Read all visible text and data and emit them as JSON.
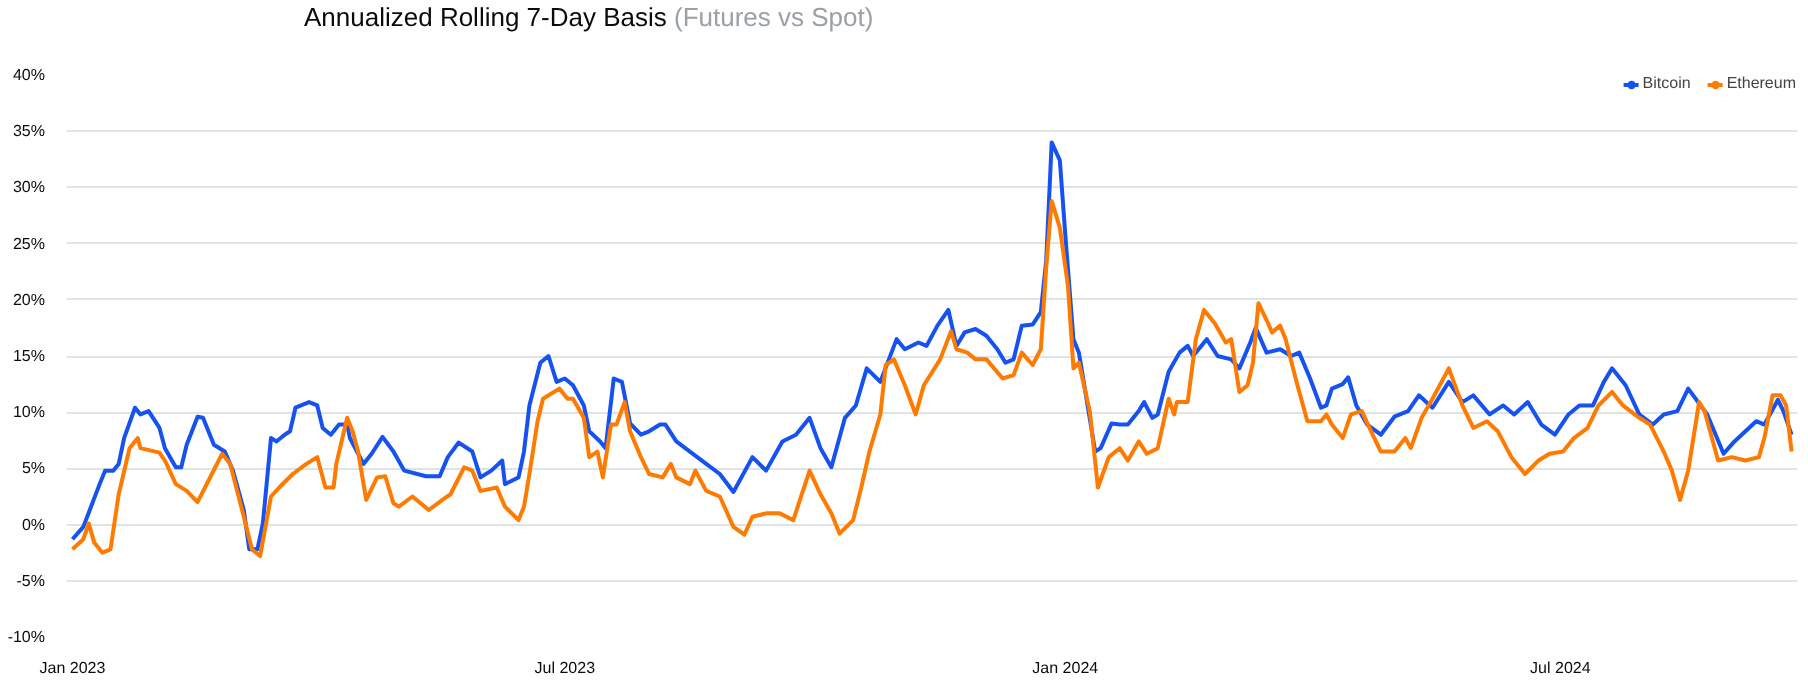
{
  "chart_data": {
    "type": "line",
    "title": "Annualized Rolling 7-Day Basis",
    "subtitle": "(Futures vs Spot)",
    "xlim": [
      "2022-12-30",
      "2024-09-26"
    ],
    "xticks": [
      {
        "value": "2023-01-01",
        "label": "Jan 2023"
      },
      {
        "value": "2023-07-01",
        "label": "Jul 2023"
      },
      {
        "value": "2024-01-01",
        "label": "Jan 2024"
      },
      {
        "value": "2024-07-01",
        "label": "Jul 2024"
      }
    ],
    "ylim": [
      -10,
      40
    ],
    "yticks": [
      {
        "value": -10,
        "label": "-10%"
      },
      {
        "value": -5,
        "label": "-5%"
      },
      {
        "value": 0,
        "label": "0%"
      },
      {
        "value": 5,
        "label": "5%"
      },
      {
        "value": 10,
        "label": "10%"
      },
      {
        "value": 15,
        "label": "15%"
      },
      {
        "value": 20,
        "label": "20%"
      },
      {
        "value": 25,
        "label": "25%"
      },
      {
        "value": 30,
        "label": "30%"
      },
      {
        "value": 35,
        "label": "35%"
      },
      {
        "value": 40,
        "label": "40%"
      }
    ],
    "grid": "y",
    "legend": "top right",
    "marker": "none",
    "line_style": "solid",
    "series": [
      {
        "name": "Bitcoin",
        "color": "#1652f0",
        "x": [
          "2023-01-01",
          "2023-01-05",
          "2023-01-11",
          "2023-01-13",
          "2023-01-16",
          "2023-01-18",
          "2023-01-20",
          "2023-01-24",
          "2023-01-26",
          "2023-01-29",
          "2023-02-02",
          "2023-02-04",
          "2023-02-08",
          "2023-02-10",
          "2023-02-12",
          "2023-02-16",
          "2023-02-18",
          "2023-02-22",
          "2023-02-26",
          "2023-03-01",
          "2023-03-05",
          "2023-03-07",
          "2023-03-10",
          "2023-03-12",
          "2023-03-15",
          "2023-03-17",
          "2023-03-20",
          "2023-03-22",
          "2023-03-24",
          "2023-03-29",
          "2023-04-01",
          "2023-04-03",
          "2023-04-06",
          "2023-04-09",
          "2023-04-12",
          "2023-04-13",
          "2023-04-18",
          "2023-04-21",
          "2023-04-25",
          "2023-04-29",
          "2023-05-03",
          "2023-05-11",
          "2023-05-16",
          "2023-05-19",
          "2023-05-23",
          "2023-05-28",
          "2023-05-31",
          "2023-06-04",
          "2023-06-08",
          "2023-06-09",
          "2023-06-14",
          "2023-06-16",
          "2023-06-18",
          "2023-06-22",
          "2023-06-25",
          "2023-06-28",
          "2023-07-01",
          "2023-07-04",
          "2023-07-08",
          "2023-07-10",
          "2023-07-14",
          "2023-07-16",
          "2023-07-19",
          "2023-07-22",
          "2023-07-25",
          "2023-07-29",
          "2023-08-01",
          "2023-08-05",
          "2023-08-07",
          "2023-08-11",
          "2023-08-16",
          "2023-08-22",
          "2023-08-27",
          "2023-09-01",
          "2023-09-08",
          "2023-09-13",
          "2023-09-19",
          "2023-09-24",
          "2023-09-29",
          "2023-10-03",
          "2023-10-07",
          "2023-10-12",
          "2023-10-16",
          "2023-10-20",
          "2023-10-25",
          "2023-10-31",
          "2023-11-03",
          "2023-11-08",
          "2023-11-11",
          "2023-11-15",
          "2023-11-19",
          "2023-11-22",
          "2023-11-25",
          "2023-11-29",
          "2023-12-03",
          "2023-12-07",
          "2023-12-10",
          "2023-12-13",
          "2023-12-16",
          "2023-12-20",
          "2023-12-23",
          "2023-12-25",
          "2023-12-27",
          "2023-12-30",
          "2024-01-01",
          "2024-01-04",
          "2024-01-06",
          "2024-01-12",
          "2024-01-14",
          "2024-01-18",
          "2024-01-21",
          "2024-01-24",
          "2024-01-28",
          "2024-01-30",
          "2024-02-02",
          "2024-02-04",
          "2024-02-08",
          "2024-02-12",
          "2024-02-15",
          "2024-02-17",
          "2024-02-22",
          "2024-02-26",
          "2024-03-02",
          "2024-03-05",
          "2024-03-09",
          "2024-03-11",
          "2024-03-15",
          "2024-03-20",
          "2024-03-24",
          "2024-03-27",
          "2024-03-31",
          "2024-04-04",
          "2024-04-06",
          "2024-04-08",
          "2024-04-12",
          "2024-04-14",
          "2024-04-17",
          "2024-04-21",
          "2024-04-26",
          "2024-05-01",
          "2024-05-06",
          "2024-05-10",
          "2024-05-15",
          "2024-05-21",
          "2024-05-26",
          "2024-05-30",
          "2024-06-05",
          "2024-06-10",
          "2024-06-14",
          "2024-06-19",
          "2024-06-24",
          "2024-06-29",
          "2024-07-04",
          "2024-07-08",
          "2024-07-13",
          "2024-07-17",
          "2024-07-20",
          "2024-07-25",
          "2024-07-30",
          "2024-08-04",
          "2024-08-08",
          "2024-08-13",
          "2024-08-17",
          "2024-08-24",
          "2024-08-30",
          "2024-09-03",
          "2024-09-11",
          "2024-09-14",
          "2024-09-19",
          "2024-09-21",
          "2024-09-24"
        ],
        "values": [
          -1.3,
          -0.2,
          3.6,
          4.8,
          4.8,
          5.4,
          7.7,
          10.4,
          9.8,
          10.1,
          8.6,
          6.8,
          5.1,
          5.1,
          7.1,
          9.6,
          9.5,
          7.1,
          6.5,
          4.8,
          1.3,
          -2.2,
          -2.2,
          0.1,
          7.7,
          7.4,
          8.0,
          8.3,
          10.4,
          10.9,
          10.6,
          8.6,
          8.0,
          8.9,
          8.9,
          7.7,
          5.4,
          6.3,
          7.8,
          6.5,
          4.8,
          4.3,
          4.3,
          6.0,
          7.3,
          6.5,
          4.2,
          4.8,
          5.7,
          3.6,
          4.2,
          6.5,
          10.6,
          14.4,
          15.0,
          12.7,
          13.0,
          12.4,
          10.6,
          8.3,
          7.4,
          6.8,
          13.0,
          12.7,
          9.0,
          8.0,
          8.3,
          8.9,
          8.9,
          7.4,
          6.5,
          5.4,
          4.5,
          2.9,
          6.0,
          4.8,
          7.4,
          8.0,
          9.5,
          6.8,
          5.1,
          9.5,
          10.6,
          13.9,
          12.7,
          16.5,
          15.6,
          16.2,
          15.9,
          17.7,
          19.1,
          15.9,
          17.1,
          17.4,
          16.8,
          15.6,
          14.4,
          14.7,
          17.7,
          17.8,
          18.9,
          23.5,
          34.0,
          32.4,
          25.8,
          16.5,
          15.3,
          6.5,
          6.8,
          9.0,
          8.9,
          8.9,
          10.1,
          10.9,
          9.5,
          9.8,
          13.6,
          15.3,
          15.9,
          15.0,
          16.5,
          15.0,
          14.7,
          13.9,
          16.2,
          17.5,
          15.3,
          15.6,
          15.0,
          15.3,
          13.0,
          10.4,
          10.6,
          12.1,
          12.5,
          13.1,
          10.6,
          8.9,
          8.0,
          9.6,
          10.1,
          11.5,
          10.4,
          12.7,
          10.9,
          11.5,
          9.8,
          10.6,
          9.8,
          10.9,
          8.9,
          8.0,
          9.8,
          10.6,
          10.6,
          12.7,
          13.9,
          12.4,
          9.8,
          8.9,
          9.8,
          10.1,
          12.1,
          9.8,
          6.3,
          7.4,
          9.2,
          8.9,
          11.1,
          10.1,
          8.0
        ]
      },
      {
        "name": "Ethereum",
        "color": "#ff7a00",
        "x": [
          "2023-01-01",
          "2023-01-05",
          "2023-01-07",
          "2023-01-09",
          "2023-01-12",
          "2023-01-15",
          "2023-01-18",
          "2023-01-22",
          "2023-01-25",
          "2023-01-26",
          "2023-02-02",
          "2023-02-04",
          "2023-02-08",
          "2023-02-12",
          "2023-02-16",
          "2023-02-20",
          "2023-02-25",
          "2023-02-28",
          "2023-03-05",
          "2023-03-08",
          "2023-03-11",
          "2023-03-15",
          "2023-03-18",
          "2023-03-23",
          "2023-03-28",
          "2023-04-01",
          "2023-04-04",
          "2023-04-07",
          "2023-04-08",
          "2023-04-12",
          "2023-04-14",
          "2023-04-16",
          "2023-04-19",
          "2023-04-23",
          "2023-04-26",
          "2023-04-29",
          "2023-05-01",
          "2023-05-06",
          "2023-05-12",
          "2023-05-17",
          "2023-05-20",
          "2023-05-25",
          "2023-05-28",
          "2023-05-31",
          "2023-06-06",
          "2023-06-09",
          "2023-06-14",
          "2023-06-16",
          "2023-06-18",
          "2023-06-21",
          "2023-06-23",
          "2023-06-29",
          "2023-07-02",
          "2023-07-04",
          "2023-07-08",
          "2023-07-10",
          "2023-07-13",
          "2023-07-15",
          "2023-07-18",
          "2023-07-20",
          "2023-07-23",
          "2023-07-25",
          "2023-07-29",
          "2023-08-01",
          "2023-08-06",
          "2023-08-09",
          "2023-08-11",
          "2023-08-16",
          "2023-08-18",
          "2023-08-22",
          "2023-08-27",
          "2023-09-01",
          "2023-09-05",
          "2023-09-08",
          "2023-09-13",
          "2023-09-18",
          "2023-09-23",
          "2023-09-29",
          "2023-10-03",
          "2023-10-07",
          "2023-10-10",
          "2023-10-15",
          "2023-10-18",
          "2023-10-21",
          "2023-10-25",
          "2023-10-27",
          "2023-10-30",
          "2023-11-03",
          "2023-11-07",
          "2023-11-10",
          "2023-11-16",
          "2023-11-20",
          "2023-11-22",
          "2023-11-26",
          "2023-11-29",
          "2023-12-03",
          "2023-12-09",
          "2023-12-13",
          "2023-12-16",
          "2023-12-20",
          "2023-12-23",
          "2023-12-25",
          "2023-12-27",
          "2023-12-30",
          "2024-01-02",
          "2024-01-04",
          "2024-01-06",
          "2024-01-10",
          "2024-01-13",
          "2024-01-17",
          "2024-01-21",
          "2024-01-24",
          "2024-01-28",
          "2024-01-31",
          "2024-02-04",
          "2024-02-08",
          "2024-02-10",
          "2024-02-11",
          "2024-02-15",
          "2024-02-18",
          "2024-02-21",
          "2024-02-25",
          "2024-02-29",
          "2024-03-02",
          "2024-03-05",
          "2024-03-08",
          "2024-03-10",
          "2024-03-12",
          "2024-03-15",
          "2024-03-17",
          "2024-03-20",
          "2024-03-22",
          "2024-03-26",
          "2024-03-30",
          "2024-04-04",
          "2024-04-06",
          "2024-04-08",
          "2024-04-12",
          "2024-04-15",
          "2024-04-19",
          "2024-04-23",
          "2024-04-26",
          "2024-05-01",
          "2024-05-05",
          "2024-05-07",
          "2024-05-11",
          "2024-05-15",
          "2024-05-21",
          "2024-05-26",
          "2024-05-30",
          "2024-06-04",
          "2024-06-08",
          "2024-06-13",
          "2024-06-18",
          "2024-06-23",
          "2024-06-27",
          "2024-07-02",
          "2024-07-06",
          "2024-07-11",
          "2024-07-15",
          "2024-07-20",
          "2024-07-24",
          "2024-07-30",
          "2024-08-03",
          "2024-08-08",
          "2024-08-11",
          "2024-08-14",
          "2024-08-17",
          "2024-08-21",
          "2024-08-23",
          "2024-08-28",
          "2024-09-02",
          "2024-09-07",
          "2024-09-12",
          "2024-09-14",
          "2024-09-17",
          "2024-09-20",
          "2024-09-22",
          "2024-09-24"
        ],
        "values": [
          -2.2,
          -1.3,
          0.1,
          -1.6,
          -2.5,
          -2.2,
          2.7,
          6.8,
          7.7,
          6.8,
          6.4,
          5.7,
          3.6,
          3.0,
          2.0,
          3.9,
          6.3,
          5.4,
          0.7,
          -2.2,
          -2.8,
          2.5,
          3.3,
          4.5,
          5.4,
          6.0,
          3.3,
          3.3,
          5.4,
          9.5,
          8.3,
          6.5,
          2.2,
          4.2,
          4.3,
          1.9,
          1.6,
          2.5,
          1.3,
          2.2,
          2.7,
          5.1,
          4.8,
          3.0,
          3.3,
          1.6,
          0.4,
          1.6,
          4.5,
          9.2,
          11.2,
          12.1,
          11.2,
          11.2,
          9.5,
          6.0,
          6.5,
          4.2,
          8.9,
          8.9,
          10.9,
          8.3,
          6.0,
          4.5,
          4.2,
          5.4,
          4.2,
          3.6,
          4.8,
          3.0,
          2.5,
          -0.2,
          -0.9,
          0.7,
          1.0,
          1.0,
          0.4,
          4.8,
          2.7,
          1.0,
          -0.8,
          0.4,
          3.3,
          6.5,
          9.8,
          14.2,
          14.7,
          12.4,
          9.8,
          12.4,
          14.7,
          17.2,
          15.6,
          15.3,
          14.7,
          14.7,
          13.0,
          13.3,
          15.3,
          14.2,
          15.6,
          22.9,
          28.8,
          26.4,
          21.2,
          13.9,
          14.4,
          10.1,
          3.3,
          6.0,
          6.8,
          5.7,
          7.4,
          6.3,
          6.8,
          11.2,
          9.8,
          10.9,
          10.9,
          16.5,
          19.1,
          17.9,
          16.2,
          16.5,
          11.8,
          12.4,
          14.4,
          19.7,
          18.2,
          17.1,
          17.7,
          16.5,
          12.7,
          9.2,
          9.2,
          9.8,
          8.9,
          7.7,
          9.8,
          10.1,
          8.0,
          6.5,
          6.5,
          7.7,
          6.8,
          9.5,
          11.2,
          13.9,
          10.6,
          8.6,
          9.2,
          8.3,
          6.0,
          4.5,
          5.7,
          6.3,
          6.5,
          7.7,
          8.6,
          10.6,
          11.8,
          10.6,
          9.5,
          8.9,
          6.5,
          4.8,
          2.2,
          4.8,
          10.9,
          10.1,
          5.7,
          6.0,
          5.7,
          6.0,
          7.7,
          11.5,
          11.5,
          10.6,
          6.5
        ]
      }
    ]
  }
}
